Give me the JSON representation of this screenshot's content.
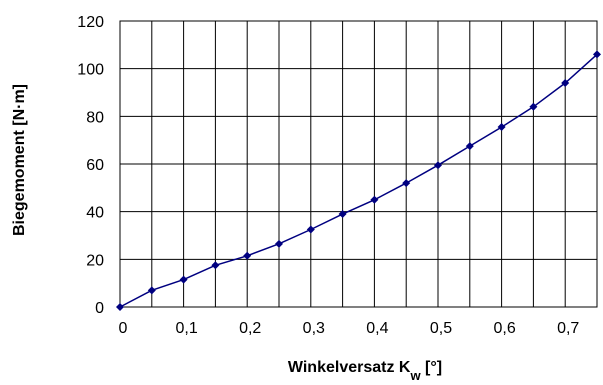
{
  "chart_data": {
    "type": "line",
    "title": "",
    "xlabel": "Winkelversatz K",
    "xlabel_subscript": "w",
    "xlabel_unit": " [°]",
    "ylabel": "Biegemoment [N·m]",
    "xlim": [
      0,
      0.75
    ],
    "ylim": [
      0,
      120
    ],
    "xticks": [
      0,
      0.1,
      0.2,
      0.3,
      0.4,
      0.5,
      0.6,
      0.7
    ],
    "xtick_labels": [
      "0",
      "0,1",
      "0,2",
      "0,3",
      "0,4",
      "0,5",
      "0,6",
      "0,7"
    ],
    "yticks": [
      0,
      20,
      40,
      60,
      80,
      100,
      120
    ],
    "ytick_labels": [
      "0",
      "20",
      "40",
      "60",
      "80",
      "100",
      "120"
    ],
    "x_gridlines_step": 0.05,
    "grid": true,
    "legend": "none",
    "series": [
      {
        "color": "#000080",
        "marker": "diamond",
        "x": [
          0,
          0.05,
          0.1,
          0.15,
          0.2,
          0.25,
          0.3,
          0.35,
          0.4,
          0.45,
          0.5,
          0.55,
          0.6,
          0.65,
          0.7,
          0.75
        ],
        "y": [
          0,
          7,
          11.5,
          17.5,
          21.5,
          26.5,
          32.5,
          39,
          45,
          52,
          59.5,
          67.5,
          75.5,
          84,
          94,
          106
        ]
      }
    ]
  }
}
